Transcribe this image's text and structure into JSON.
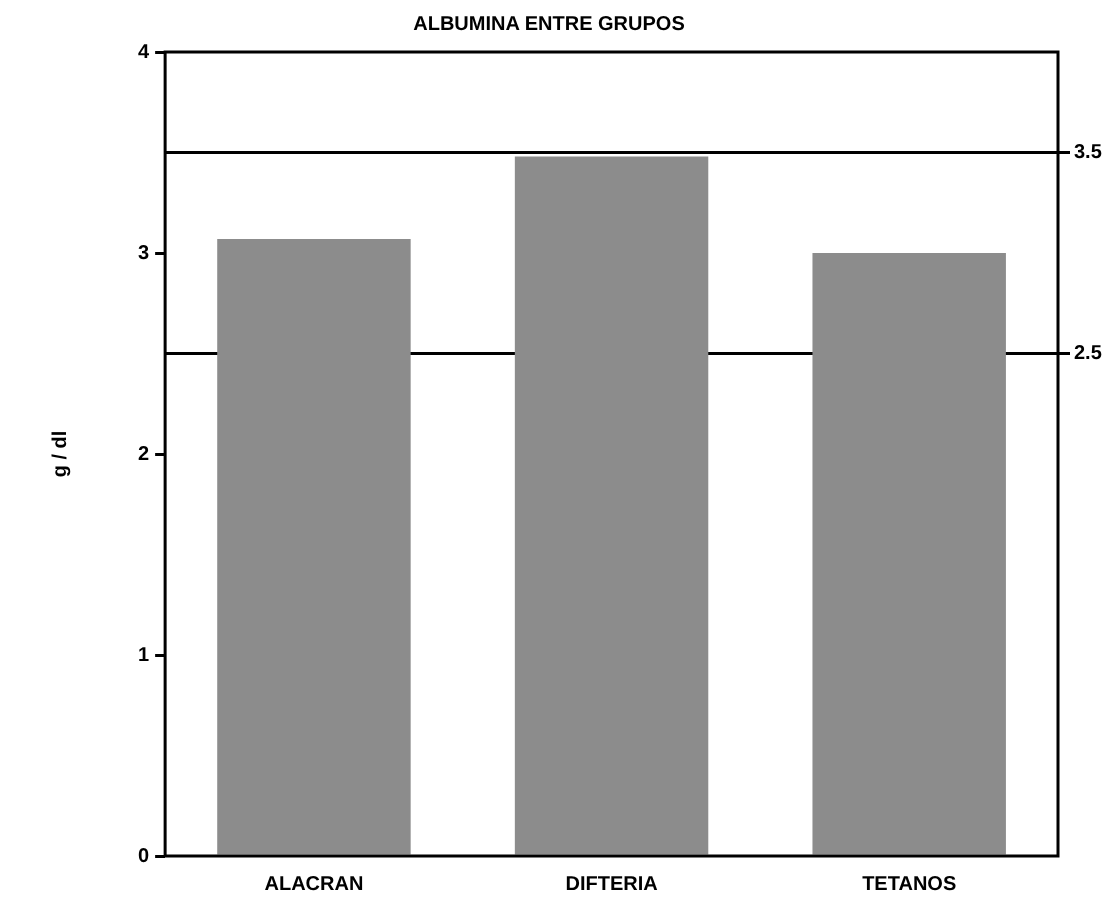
{
  "chart_data": {
    "type": "bar",
    "title": "ALBUMINA ENTRE GRUPOS",
    "ylabel": "g / dl",
    "categories": [
      "ALACRAN",
      "DIFTERIA",
      "TETANOS"
    ],
    "values": [
      3.07,
      3.48,
      3.0
    ],
    "color": "#8c8c8c",
    "ylim": [
      0,
      4
    ],
    "yticks": [
      0,
      1,
      2,
      3,
      4
    ],
    "grid": false,
    "legend": false,
    "ref_lines": [
      {
        "axis": "y",
        "value": 3.5,
        "label": "3.5"
      },
      {
        "axis": "y",
        "value": 2.5,
        "label": "2.5"
      }
    ]
  }
}
